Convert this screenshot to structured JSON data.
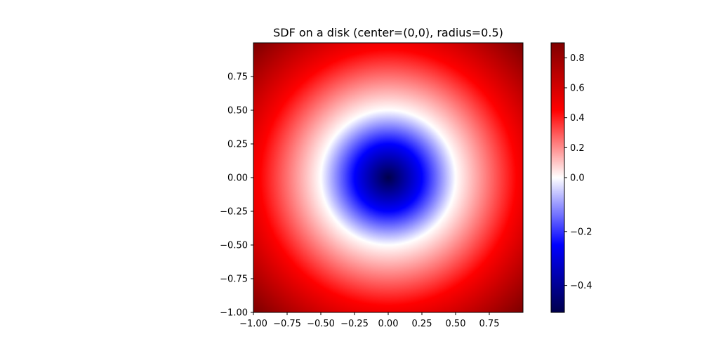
{
  "chart_data": {
    "type": "heatmap",
    "title": "SDF on a disk (center=(0,0), radius=0.5)",
    "xlabel": "",
    "ylabel": "",
    "field": {
      "function": "signed distance to circle",
      "center": [
        0,
        0
      ],
      "radius": 0.5
    },
    "xlim": [
      -1.0,
      1.0
    ],
    "ylim": [
      -1.0,
      1.0
    ],
    "x_ticks": [
      -1.0,
      -0.75,
      -0.5,
      -0.25,
      0.0,
      0.25,
      0.5,
      0.75
    ],
    "x_tick_labels": [
      "−1.00",
      "−0.75",
      "−0.50",
      "−0.25",
      "0.00",
      "0.25",
      "0.50",
      "0.75"
    ],
    "y_ticks": [
      -1.0,
      -0.75,
      -0.5,
      -0.25,
      0.0,
      0.25,
      0.5,
      0.75
    ],
    "y_tick_labels": [
      "−1.00",
      "−0.75",
      "−0.50",
      "−0.25",
      "0.00",
      "0.25",
      "0.50",
      "0.75"
    ],
    "colormap": "seismic",
    "colormap_stops": [
      "#00004c",
      "#0000ff",
      "#ffffff",
      "#ff0000",
      "#800000"
    ],
    "colorbar": {
      "vmin": -0.5,
      "vmax": 0.9,
      "center": 0.0,
      "ticks": [
        -0.4,
        -0.2,
        0.0,
        0.2,
        0.4,
        0.6,
        0.8
      ],
      "tick_labels": [
        "−0.4",
        "−0.2",
        "0.0",
        "0.2",
        "0.4",
        "0.6",
        "0.8"
      ]
    },
    "grid": false
  }
}
